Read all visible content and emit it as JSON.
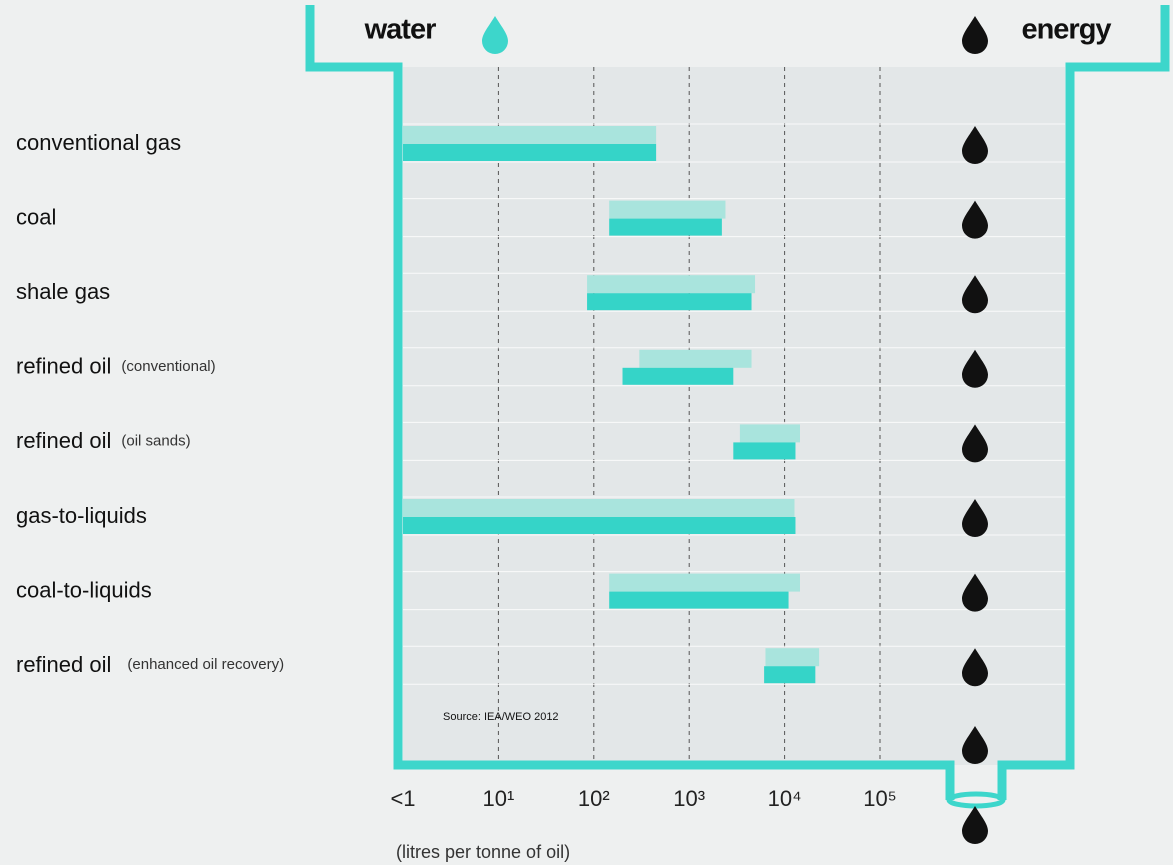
{
  "chart_data": {
    "type": "range-bar",
    "water_label": "water",
    "energy_label": "energy",
    "source": "Source: IEA/WEO 2012",
    "x_label": "(litres per tonne of oil)",
    "categories": [
      "conventional gas",
      "coal",
      "shale gas",
      "refined oil",
      "refined oil",
      "gas-to-liquids",
      "coal-to-liquids",
      "refined oil"
    ],
    "notes": [
      null,
      null,
      null,
      "(conventional)",
      "(oil sands)",
      null,
      null,
      "(enhanced oil recovery)"
    ],
    "series": [
      {
        "color": "#a9e4dd",
        "values": [
          [
            1,
            450
          ],
          [
            145,
            2400
          ],
          [
            85,
            4900
          ],
          [
            300,
            4500
          ],
          [
            3400,
            14500
          ],
          [
            1,
            12700
          ],
          [
            145,
            14500
          ],
          [
            6300,
            23000
          ]
        ]
      },
      {
        "color": "#35d4c8",
        "values": [
          [
            1,
            450
          ],
          [
            145,
            2200
          ],
          [
            85,
            4500
          ],
          [
            200,
            2900
          ],
          [
            2900,
            13000
          ],
          [
            1,
            13000
          ],
          [
            145,
            11000
          ],
          [
            6100,
            21000
          ]
        ]
      }
    ],
    "log_scale": true,
    "xlim": [
      1,
      100000
    ],
    "xticks": [
      {
        "value": 1,
        "label": "<1"
      },
      {
        "value": 10,
        "label": "10¹"
      },
      {
        "value": 100,
        "label": "10²"
      },
      {
        "value": 1000,
        "label": "10³"
      },
      {
        "value": 10000,
        "label": "10⁴"
      },
      {
        "value": 100000,
        "label": "10⁵"
      }
    ],
    "grid": true
  }
}
